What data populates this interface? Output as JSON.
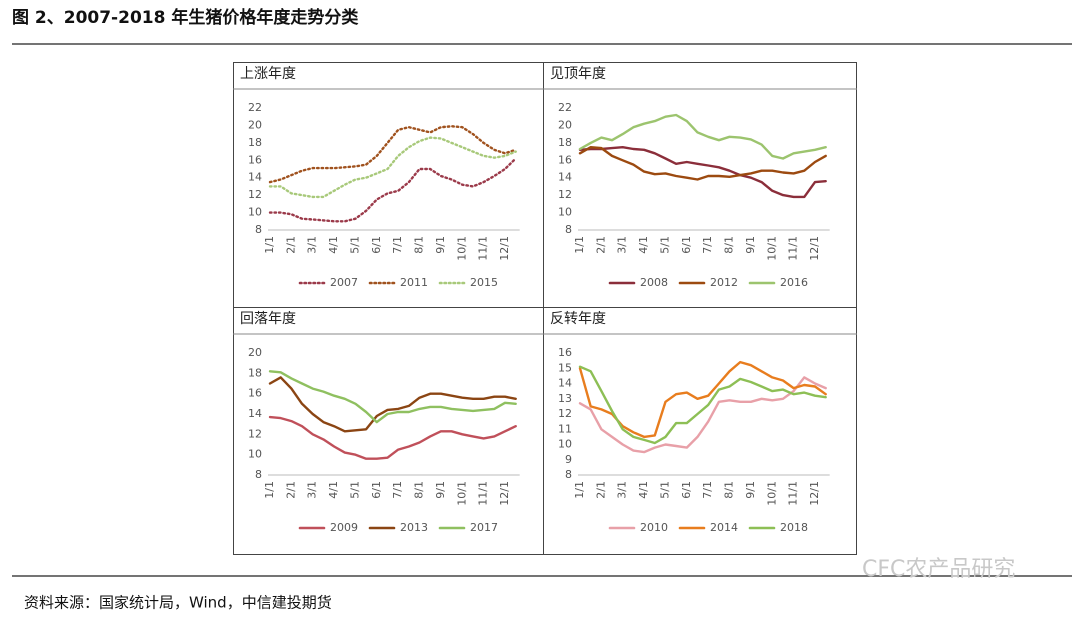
{
  "title": "图 2、2007-2018 年生猪价格年度走势分类",
  "source": "资料来源：国家统计局，Wind，中信建投期货",
  "watermark": "CFC农产品研究",
  "chart_data": [
    {
      "type": "line",
      "title": "上涨年度",
      "line_style": "dotted",
      "categories": [
        "1/1",
        null,
        "2/1",
        null,
        "3/1",
        null,
        "4/1",
        null,
        "5/1",
        null,
        "6/1",
        null,
        "7/1",
        null,
        "8/1",
        null,
        "9/1",
        null,
        "10/1",
        null,
        "11/1",
        null,
        "12/1",
        null
      ],
      "ylim": [
        8,
        22
      ],
      "yticks": [
        8,
        10,
        12,
        14,
        16,
        18,
        20,
        22
      ],
      "series": [
        {
          "name": "2007",
          "color": "#9b3a4a",
          "values": [
            10,
            10,
            9.8,
            9.3,
            9.2,
            9.1,
            9,
            9,
            9.3,
            10.2,
            11.5,
            12.2,
            12.5,
            13.5,
            15,
            15,
            14.2,
            13.8,
            13.2,
            13,
            13.5,
            14.2,
            15,
            16.2
          ]
        },
        {
          "name": "2011",
          "color": "#a0521e",
          "values": [
            13.5,
            13.8,
            14.3,
            14.8,
            15.1,
            15.1,
            15.1,
            15.2,
            15.3,
            15.5,
            16.5,
            18,
            19.5,
            19.8,
            19.5,
            19.2,
            19.8,
            19.9,
            19.8,
            19,
            18,
            17.2,
            16.8,
            17.2
          ]
        },
        {
          "name": "2015",
          "color": "#a8c97a",
          "values": [
            13,
            13,
            12.2,
            12,
            11.8,
            11.8,
            12.5,
            13.2,
            13.8,
            14,
            14.5,
            15,
            16.5,
            17.5,
            18.2,
            18.6,
            18.5,
            18,
            17.5,
            17,
            16.5,
            16.3,
            16.5,
            17
          ]
        }
      ]
    },
    {
      "type": "line",
      "title": "见顶年度",
      "line_style": "solid",
      "categories": [
        "1/1",
        null,
        "2/1",
        null,
        "3/1",
        null,
        "4/1",
        null,
        "5/1",
        null,
        "6/1",
        null,
        "7/1",
        null,
        "8/1",
        null,
        "9/1",
        null,
        "10/1",
        null,
        "11/1",
        null,
        "12/1",
        null
      ],
      "ylim": [
        8,
        22
      ],
      "yticks": [
        8,
        10,
        12,
        14,
        16,
        18,
        20,
        22
      ],
      "series": [
        {
          "name": "2008",
          "color": "#8b2e3a",
          "values": [
            17.2,
            17.3,
            17.3,
            17.4,
            17.5,
            17.3,
            17.2,
            16.8,
            16.2,
            15.6,
            15.8,
            15.6,
            15.4,
            15.2,
            14.8,
            14.3,
            14,
            13.5,
            12.5,
            12,
            11.8,
            11.8,
            13.5,
            13.6
          ]
        },
        {
          "name": "2012",
          "color": "#9c4a10",
          "values": [
            16.8,
            17.5,
            17.4,
            16.5,
            16,
            15.5,
            14.7,
            14.4,
            14.5,
            14.2,
            14,
            13.8,
            14.2,
            14.2,
            14.1,
            14.3,
            14.5,
            14.8,
            14.8,
            14.6,
            14.5,
            14.8,
            15.8,
            16.5
          ]
        },
        {
          "name": "2016",
          "color": "#9cc46e",
          "values": [
            17.3,
            18,
            18.6,
            18.3,
            19,
            19.8,
            20.2,
            20.5,
            21,
            21.2,
            20.5,
            19.2,
            18.7,
            18.3,
            18.7,
            18.6,
            18.4,
            17.8,
            16.5,
            16.2,
            16.8,
            17,
            17.2,
            17.5
          ]
        }
      ]
    },
    {
      "type": "line",
      "title": "回落年度",
      "line_style": "solid",
      "categories": [
        "1/1",
        null,
        "2/1",
        null,
        "3/1",
        null,
        "4/1",
        null,
        "5/1",
        null,
        "6/1",
        null,
        "7/1",
        null,
        "8/1",
        null,
        "9/1",
        null,
        "10/1",
        null,
        "11/1",
        null,
        "12/1",
        null
      ],
      "ylim": [
        8,
        20
      ],
      "yticks": [
        8,
        10,
        12,
        14,
        16,
        18,
        20
      ],
      "series": [
        {
          "name": "2009",
          "color": "#c0505a",
          "values": [
            13.7,
            13.6,
            13.3,
            12.8,
            12,
            11.5,
            10.8,
            10.2,
            10,
            9.6,
            9.6,
            9.7,
            10.5,
            10.8,
            11.2,
            11.8,
            12.3,
            12.3,
            12,
            11.8,
            11.6,
            11.8,
            12.3,
            12.8
          ]
        },
        {
          "name": "2013",
          "color": "#8b4513",
          "values": [
            17,
            17.6,
            16.5,
            15,
            14,
            13.2,
            12.8,
            12.3,
            12.4,
            12.5,
            13.8,
            14.4,
            14.5,
            14.8,
            15.6,
            16,
            16,
            15.8,
            15.6,
            15.5,
            15.5,
            15.7,
            15.7,
            15.5
          ]
        },
        {
          "name": "2017",
          "color": "#8fc060",
          "values": [
            18.2,
            18.1,
            17.5,
            17,
            16.5,
            16.2,
            15.8,
            15.5,
            15,
            14.2,
            13.2,
            14,
            14.2,
            14.2,
            14.5,
            14.7,
            14.7,
            14.5,
            14.4,
            14.3,
            14.4,
            14.5,
            15.1,
            15
          ]
        }
      ]
    },
    {
      "type": "line",
      "title": "反转年度",
      "line_style": "solid",
      "categories": [
        "1/1",
        null,
        "2/1",
        null,
        "3/1",
        null,
        "4/1",
        null,
        "5/1",
        null,
        "6/1",
        null,
        "7/1",
        null,
        "8/1",
        null,
        "9/1",
        null,
        "10/1",
        null,
        "11/1",
        null,
        "12/1",
        null
      ],
      "ylim": [
        8,
        16
      ],
      "yticks": [
        8,
        9,
        10,
        11,
        12,
        13,
        14,
        15,
        16
      ],
      "series": [
        {
          "name": "2010",
          "color": "#e8a0a8",
          "values": [
            12.7,
            12.3,
            11,
            10.5,
            10,
            9.6,
            9.5,
            9.8,
            10,
            9.9,
            9.8,
            10.5,
            11.5,
            12.8,
            12.9,
            12.8,
            12.8,
            13,
            12.9,
            13,
            13.5,
            14.4,
            14,
            13.7
          ]
        },
        {
          "name": "2014",
          "color": "#e87d1e",
          "values": [
            15,
            12.5,
            12.3,
            12,
            11.2,
            10.8,
            10.5,
            10.6,
            12.8,
            13.3,
            13.4,
            13,
            13.2,
            14,
            14.8,
            15.4,
            15.2,
            14.8,
            14.4,
            14.2,
            13.7,
            13.9,
            13.8,
            13.3
          ]
        },
        {
          "name": "2018",
          "color": "#8dbf55",
          "values": [
            15.1,
            14.8,
            13.5,
            12.2,
            11,
            10.5,
            10.3,
            10.1,
            10.5,
            11.4,
            11.4,
            12,
            12.6,
            13.6,
            13.8,
            14.3,
            14.1,
            13.8,
            13.5,
            13.6,
            13.3,
            13.4,
            13.2,
            13.1
          ]
        }
      ]
    }
  ]
}
